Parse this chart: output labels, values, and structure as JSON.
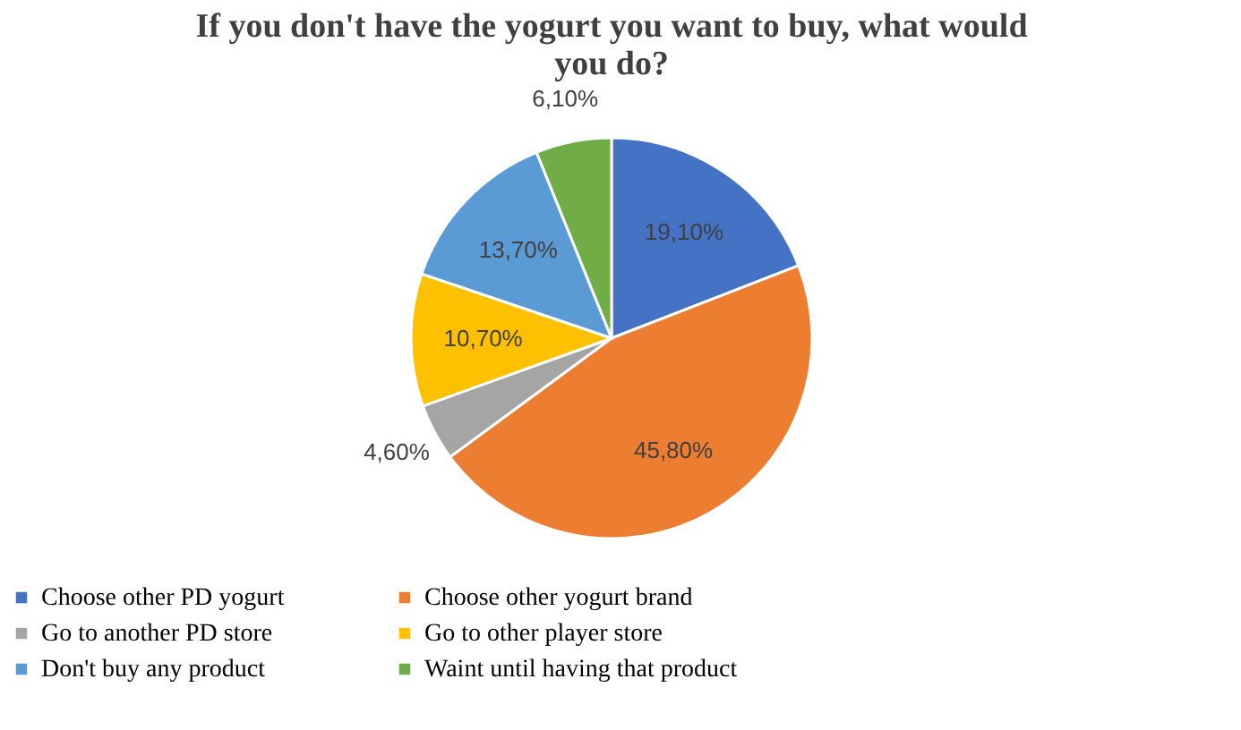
{
  "chart_data": {
    "type": "pie",
    "title": "If you don't have the yogurt you want to buy, what would you do?",
    "categories": [
      "Choose other PD yogurt",
      "Choose other yogurt brand",
      "Go to another PD store",
      "Go to other player store",
      "Don't buy any product",
      "Waint until having that product"
    ],
    "values": [
      19.1,
      45.8,
      4.6,
      10.7,
      13.7,
      6.1
    ],
    "value_labels": [
      "19,10%",
      "45,80%",
      "4,60%",
      "10,70%",
      "13,70%",
      "6,10%"
    ],
    "colors": [
      "#4472c4",
      "#ed7d31",
      "#a5a5a5",
      "#ffc000",
      "#5b9bd5",
      "#70ad47"
    ],
    "legend": "bottom"
  }
}
